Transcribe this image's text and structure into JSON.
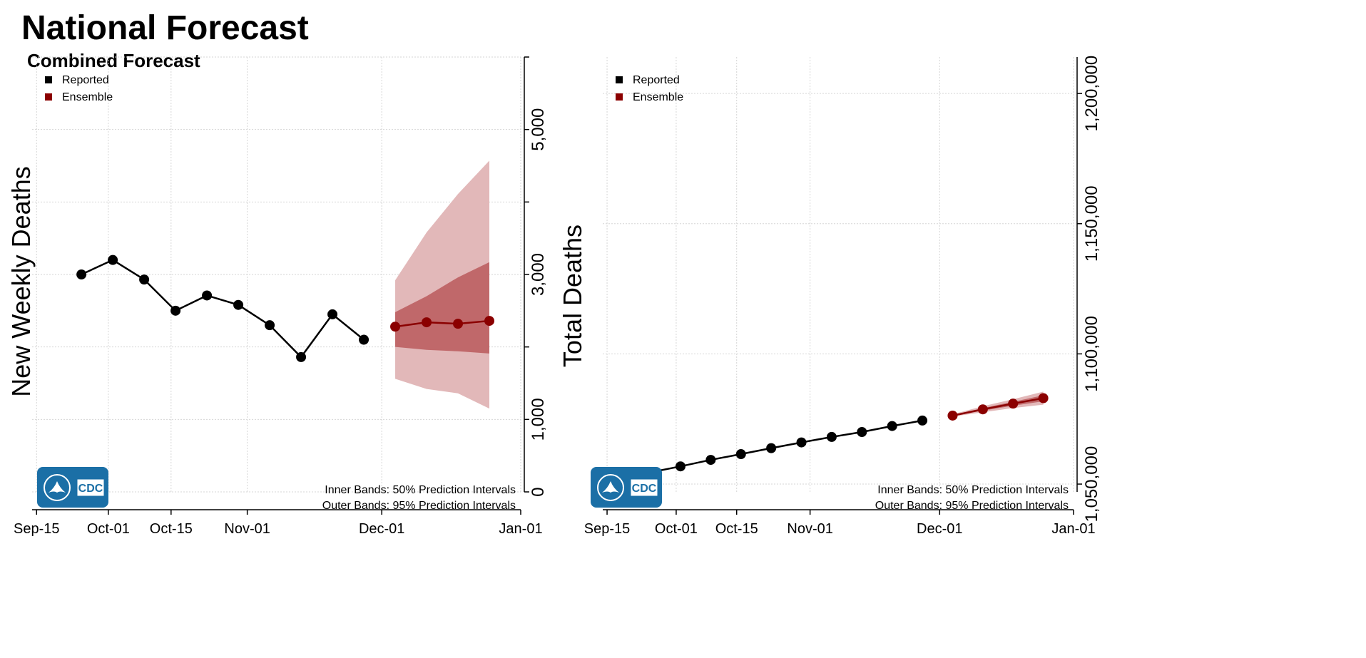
{
  "title": "National Forecast",
  "subtitle": "Combined Forecast",
  "colors": {
    "reported": "#000000",
    "ensemble": "#8b0000",
    "band_inner": "#c0686a",
    "band_outer": "#e2b8b9",
    "logo_bg": "#1b6fa6",
    "grid": "#d6d6d6"
  },
  "cdc_logo": {
    "text": "CDC",
    "icon": "hhs-eagle-icon"
  },
  "chart_data": [
    {
      "type": "line",
      "ylabel": "New Weekly Deaths",
      "xlabel": "",
      "xlim": [
        "2021-09-14",
        "2022-01-01"
      ],
      "ylim": [
        0,
        6000
      ],
      "x_ticks": [
        {
          "date": "2021-09-15",
          "label": "Sep-15"
        },
        {
          "date": "2021-10-01",
          "label": "Oct-01"
        },
        {
          "date": "2021-10-15",
          "label": "Oct-15"
        },
        {
          "date": "2021-11-01",
          "label": "Nov-01"
        },
        {
          "date": "2021-12-01",
          "label": "Dec-01"
        },
        {
          "date": "2022-01-01",
          "label": "Jan-01"
        }
      ],
      "y_ticks": [
        {
          "value": 0,
          "label": "0"
        },
        {
          "value": 1000,
          "label": "1,000"
        },
        {
          "value": 3000,
          "label": "3,000"
        },
        {
          "value": 5000,
          "label": "5,000"
        }
      ],
      "y_grid": [
        0,
        1000,
        2000,
        3000,
        4000,
        5000,
        6000
      ],
      "legend": [
        {
          "name": "Reported",
          "color": "#000000"
        },
        {
          "name": "Ensemble",
          "color": "#8b0000"
        }
      ],
      "legend_position": "top-left",
      "footnote": [
        "Inner Bands: 50% Prediction Intervals",
        "Outer Bands: 95% Prediction Intervals"
      ],
      "series": [
        {
          "name": "Reported",
          "x": [
            "2021-09-25",
            "2021-10-02",
            "2021-10-09",
            "2021-10-16",
            "2021-10-23",
            "2021-10-30",
            "2021-11-06",
            "2021-11-13",
            "2021-11-20",
            "2021-11-27"
          ],
          "y": [
            3000,
            3200,
            2930,
            2500,
            2710,
            2580,
            2300,
            1860,
            2450,
            2100
          ]
        },
        {
          "name": "Ensemble",
          "x": [
            "2021-12-04",
            "2021-12-11",
            "2021-12-18",
            "2021-12-25"
          ],
          "y": [
            2280,
            2340,
            2320,
            2360
          ],
          "pi50_low": [
            2000,
            1960,
            1940,
            1910
          ],
          "pi50_high": [
            2480,
            2700,
            2960,
            3170
          ],
          "pi95_low": [
            1560,
            1420,
            1360,
            1150
          ],
          "pi95_high": [
            2920,
            3580,
            4110,
            4570
          ]
        }
      ]
    },
    {
      "type": "line",
      "ylabel": "Total Deaths",
      "xlabel": "",
      "xlim": [
        "2021-09-14",
        "2022-01-01"
      ],
      "ylim": [
        1047000,
        1214000
      ],
      "x_ticks": [
        {
          "date": "2021-09-15",
          "label": "Sep-15"
        },
        {
          "date": "2021-10-01",
          "label": "Oct-01"
        },
        {
          "date": "2021-10-15",
          "label": "Oct-15"
        },
        {
          "date": "2021-11-01",
          "label": "Nov-01"
        },
        {
          "date": "2021-12-01",
          "label": "Dec-01"
        },
        {
          "date": "2022-01-01",
          "label": "Jan-01"
        }
      ],
      "y_ticks": [
        {
          "value": 1050000,
          "label": "1,050,000"
        },
        {
          "value": 1100000,
          "label": "1,100,000"
        },
        {
          "value": 1150000,
          "label": "1,150,000"
        },
        {
          "value": 1200000,
          "label": "1,200,000"
        }
      ],
      "y_grid": [
        1050000,
        1100000,
        1150000,
        1200000
      ],
      "legend": [
        {
          "name": "Reported",
          "color": "#000000"
        },
        {
          "name": "Ensemble",
          "color": "#8b0000"
        }
      ],
      "legend_position": "top-left",
      "footnote": [
        "Inner Bands: 50% Prediction Intervals",
        "Outer Bands: 95% Prediction Intervals"
      ],
      "series": [
        {
          "name": "Reported",
          "x": [
            "2021-09-25",
            "2021-10-02",
            "2021-10-09",
            "2021-10-16",
            "2021-10-23",
            "2021-10-30",
            "2021-11-06",
            "2021-11-13",
            "2021-11-20",
            "2021-11-27"
          ],
          "y": [
            1054500,
            1056800,
            1059300,
            1061500,
            1063800,
            1066000,
            1068100,
            1070000,
            1072300,
            1074400
          ]
        },
        {
          "name": "Ensemble",
          "x": [
            "2021-12-04",
            "2021-12-11",
            "2021-12-18",
            "2021-12-25"
          ],
          "y": [
            1076300,
            1078700,
            1080900,
            1083000
          ],
          "pi50_low": [
            1076100,
            1078200,
            1080100,
            1081800
          ],
          "pi50_high": [
            1076500,
            1079200,
            1081600,
            1084100
          ],
          "pi95_low": [
            1075900,
            1077600,
            1079200,
            1080500
          ],
          "pi95_high": [
            1076800,
            1079900,
            1082600,
            1085500
          ]
        }
      ]
    }
  ]
}
